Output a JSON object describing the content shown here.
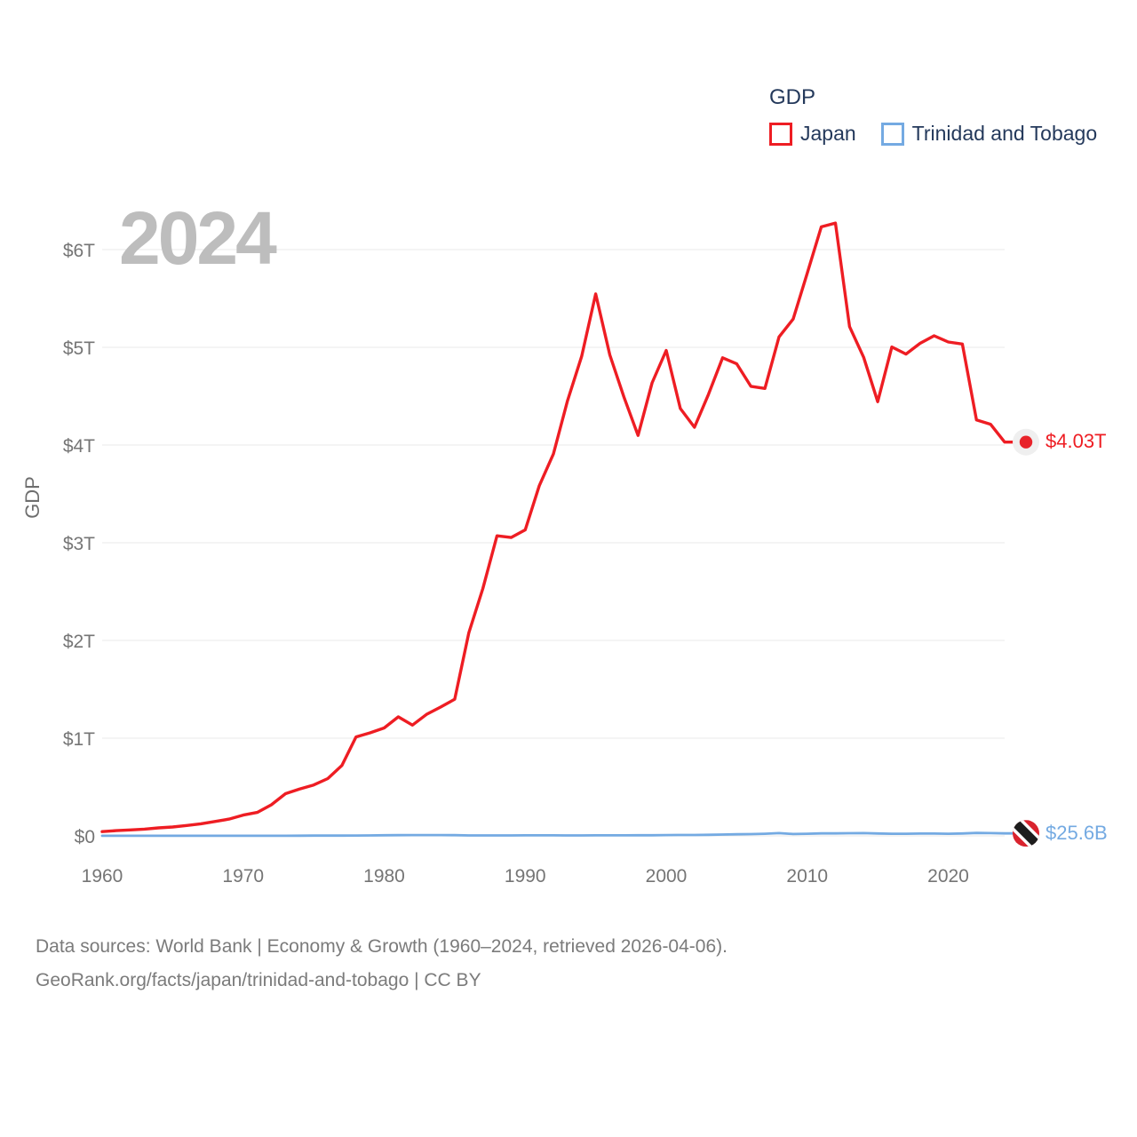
{
  "page": {
    "background": "#ffffff"
  },
  "watermark": "2024",
  "legend": {
    "title": "GDP",
    "items": [
      {
        "label": "Japan",
        "color": "#ee1d23"
      },
      {
        "label": "Trinidad and Tobago",
        "color": "#74aae2"
      }
    ]
  },
  "chart_data": {
    "type": "line",
    "title": "GDP",
    "xlabel": "",
    "ylabel": "GDP",
    "grid": "horizontal",
    "legend_position": "top-right",
    "xlim": [
      1960,
      2024
    ],
    "ylim_trillions": [
      0,
      6.5
    ],
    "x_ticks": [
      1960,
      1970,
      1980,
      1990,
      2000,
      2010,
      2020
    ],
    "y_ticks": [
      "$0",
      "$1T",
      "$2T",
      "$3T",
      "$4T",
      "$5T",
      "$6T"
    ],
    "years": [
      1960,
      1961,
      1962,
      1963,
      1964,
      1965,
      1966,
      1967,
      1968,
      1969,
      1970,
      1971,
      1972,
      1973,
      1974,
      1975,
      1976,
      1977,
      1978,
      1979,
      1980,
      1981,
      1982,
      1983,
      1984,
      1985,
      1986,
      1987,
      1988,
      1989,
      1990,
      1991,
      1992,
      1993,
      1994,
      1995,
      1996,
      1997,
      1998,
      1999,
      2000,
      2001,
      2002,
      2003,
      2004,
      2005,
      2006,
      2007,
      2008,
      2009,
      2010,
      2011,
      2012,
      2013,
      2014,
      2015,
      2016,
      2017,
      2018,
      2019,
      2020,
      2021,
      2022,
      2023,
      2024
    ],
    "series": [
      {
        "name": "Japan",
        "color": "#ee1d23",
        "unit": "trillion USD",
        "unit_scale_to_trillions": 1,
        "end_label": "$4.03T",
        "end_marker": "japan-flag-icon",
        "values": [
          0.044,
          0.054,
          0.061,
          0.069,
          0.082,
          0.091,
          0.106,
          0.124,
          0.147,
          0.172,
          0.213,
          0.24,
          0.318,
          0.432,
          0.48,
          0.521,
          0.586,
          0.721,
          1.013,
          1.055,
          1.105,
          1.218,
          1.134,
          1.243,
          1.318,
          1.398,
          2.078,
          2.532,
          3.071,
          3.054,
          3.132,
          3.584,
          3.908,
          4.454,
          4.907,
          5.546,
          4.923,
          4.492,
          4.098,
          4.636,
          4.968,
          4.374,
          4.182,
          4.519,
          4.893,
          4.831,
          4.601,
          4.579,
          5.106,
          5.289,
          5.759,
          6.233,
          6.272,
          5.212,
          4.897,
          4.444,
          5.004,
          4.931,
          5.041,
          5.118,
          5.055,
          5.034,
          4.256,
          4.213,
          4.03
        ]
      },
      {
        "name": "Trinidad and Tobago",
        "color": "#74aae2",
        "unit": "billion USD",
        "unit_scale_to_trillions": 0.001,
        "end_label": "$25.6B",
        "end_marker": "trinidad-and-tobago-flag-icon",
        "values": [
          0.54,
          0.59,
          0.63,
          0.67,
          0.7,
          0.72,
          0.73,
          0.77,
          0.79,
          0.8,
          0.82,
          0.9,
          1.0,
          1.31,
          1.98,
          2.44,
          2.5,
          3.14,
          3.56,
          4.6,
          6.24,
          6.89,
          8.13,
          7.77,
          7.8,
          7.35,
          4.79,
          4.8,
          4.5,
          4.32,
          5.07,
          5.31,
          5.44,
          4.58,
          4.95,
          5.33,
          5.76,
          5.74,
          6.05,
          6.81,
          8.15,
          8.83,
          9.01,
          11.3,
          13.3,
          16.0,
          18.4,
          21.5,
          27.9,
          19.2,
          22.1,
          25.4,
          25.2,
          27.3,
          28.1,
          24.6,
          21.6,
          22.1,
          23.8,
          23.2,
          21.6,
          24.5,
          30.1,
          28.1,
          25.6
        ]
      }
    ],
    "icons": {
      "japan_flag": {
        "field": "#efefef",
        "disc": "#e8232a"
      },
      "trinidad_and_tobago_flag": {
        "field": "#d9232e",
        "stripe": "#1d1d1d",
        "fimbriation": "#ffffff"
      }
    },
    "style": {
      "gridline_color": "#e9e9e9",
      "tick_label_color": "#757575",
      "axis_title_color": "#6e6e6e"
    }
  },
  "footer": {
    "line1": "Data sources: World Bank | Economy & Growth (1960–2024, retrieved 2026-04-06).",
    "line2": "GeoRank.org/facts/japan/trinidad-and-tobago | CC BY"
  }
}
